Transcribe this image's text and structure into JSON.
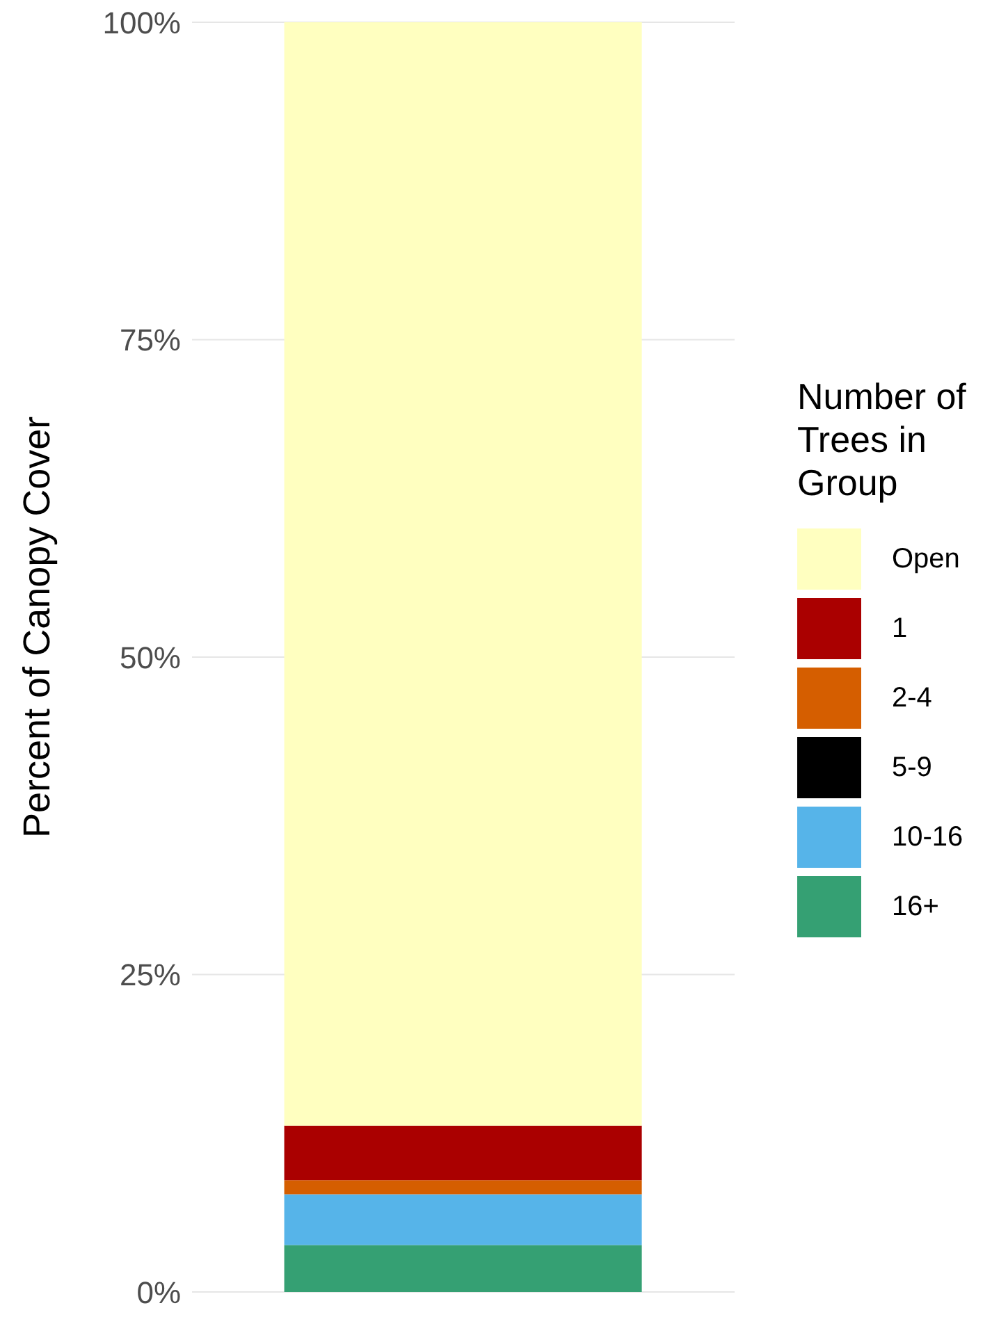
{
  "chart_data": {
    "type": "bar",
    "stacked": true,
    "ylabel": "Percent of Canopy Cover",
    "legend_title": "Number of Trees in Group",
    "categories": [
      null
    ],
    "series": [
      {
        "name": "16+",
        "color": "#35a073",
        "values": [
          3.7
        ]
      },
      {
        "name": "10-16",
        "color": "#56b4e9",
        "values": [
          4.0
        ]
      },
      {
        "name": "5-9",
        "color": "#000000",
        "values": [
          0
        ]
      },
      {
        "name": "2-4",
        "color": "#d55e00",
        "values": [
          1.1
        ]
      },
      {
        "name": "1",
        "color": "#aa0000",
        "values": [
          4.3
        ]
      },
      {
        "name": "Open",
        "color": "#ffffc0",
        "values": [
          86.9
        ]
      }
    ],
    "ylim": [
      0,
      100
    ],
    "yticks": [
      {
        "value": 0,
        "label": "0%"
      },
      {
        "value": 25,
        "label": "25%"
      },
      {
        "value": 50,
        "label": "50%"
      },
      {
        "value": 75,
        "label": "75%"
      },
      {
        "value": 100,
        "label": "100%"
      }
    ],
    "grid": "y",
    "legend": "right",
    "tick_labels": "y"
  }
}
